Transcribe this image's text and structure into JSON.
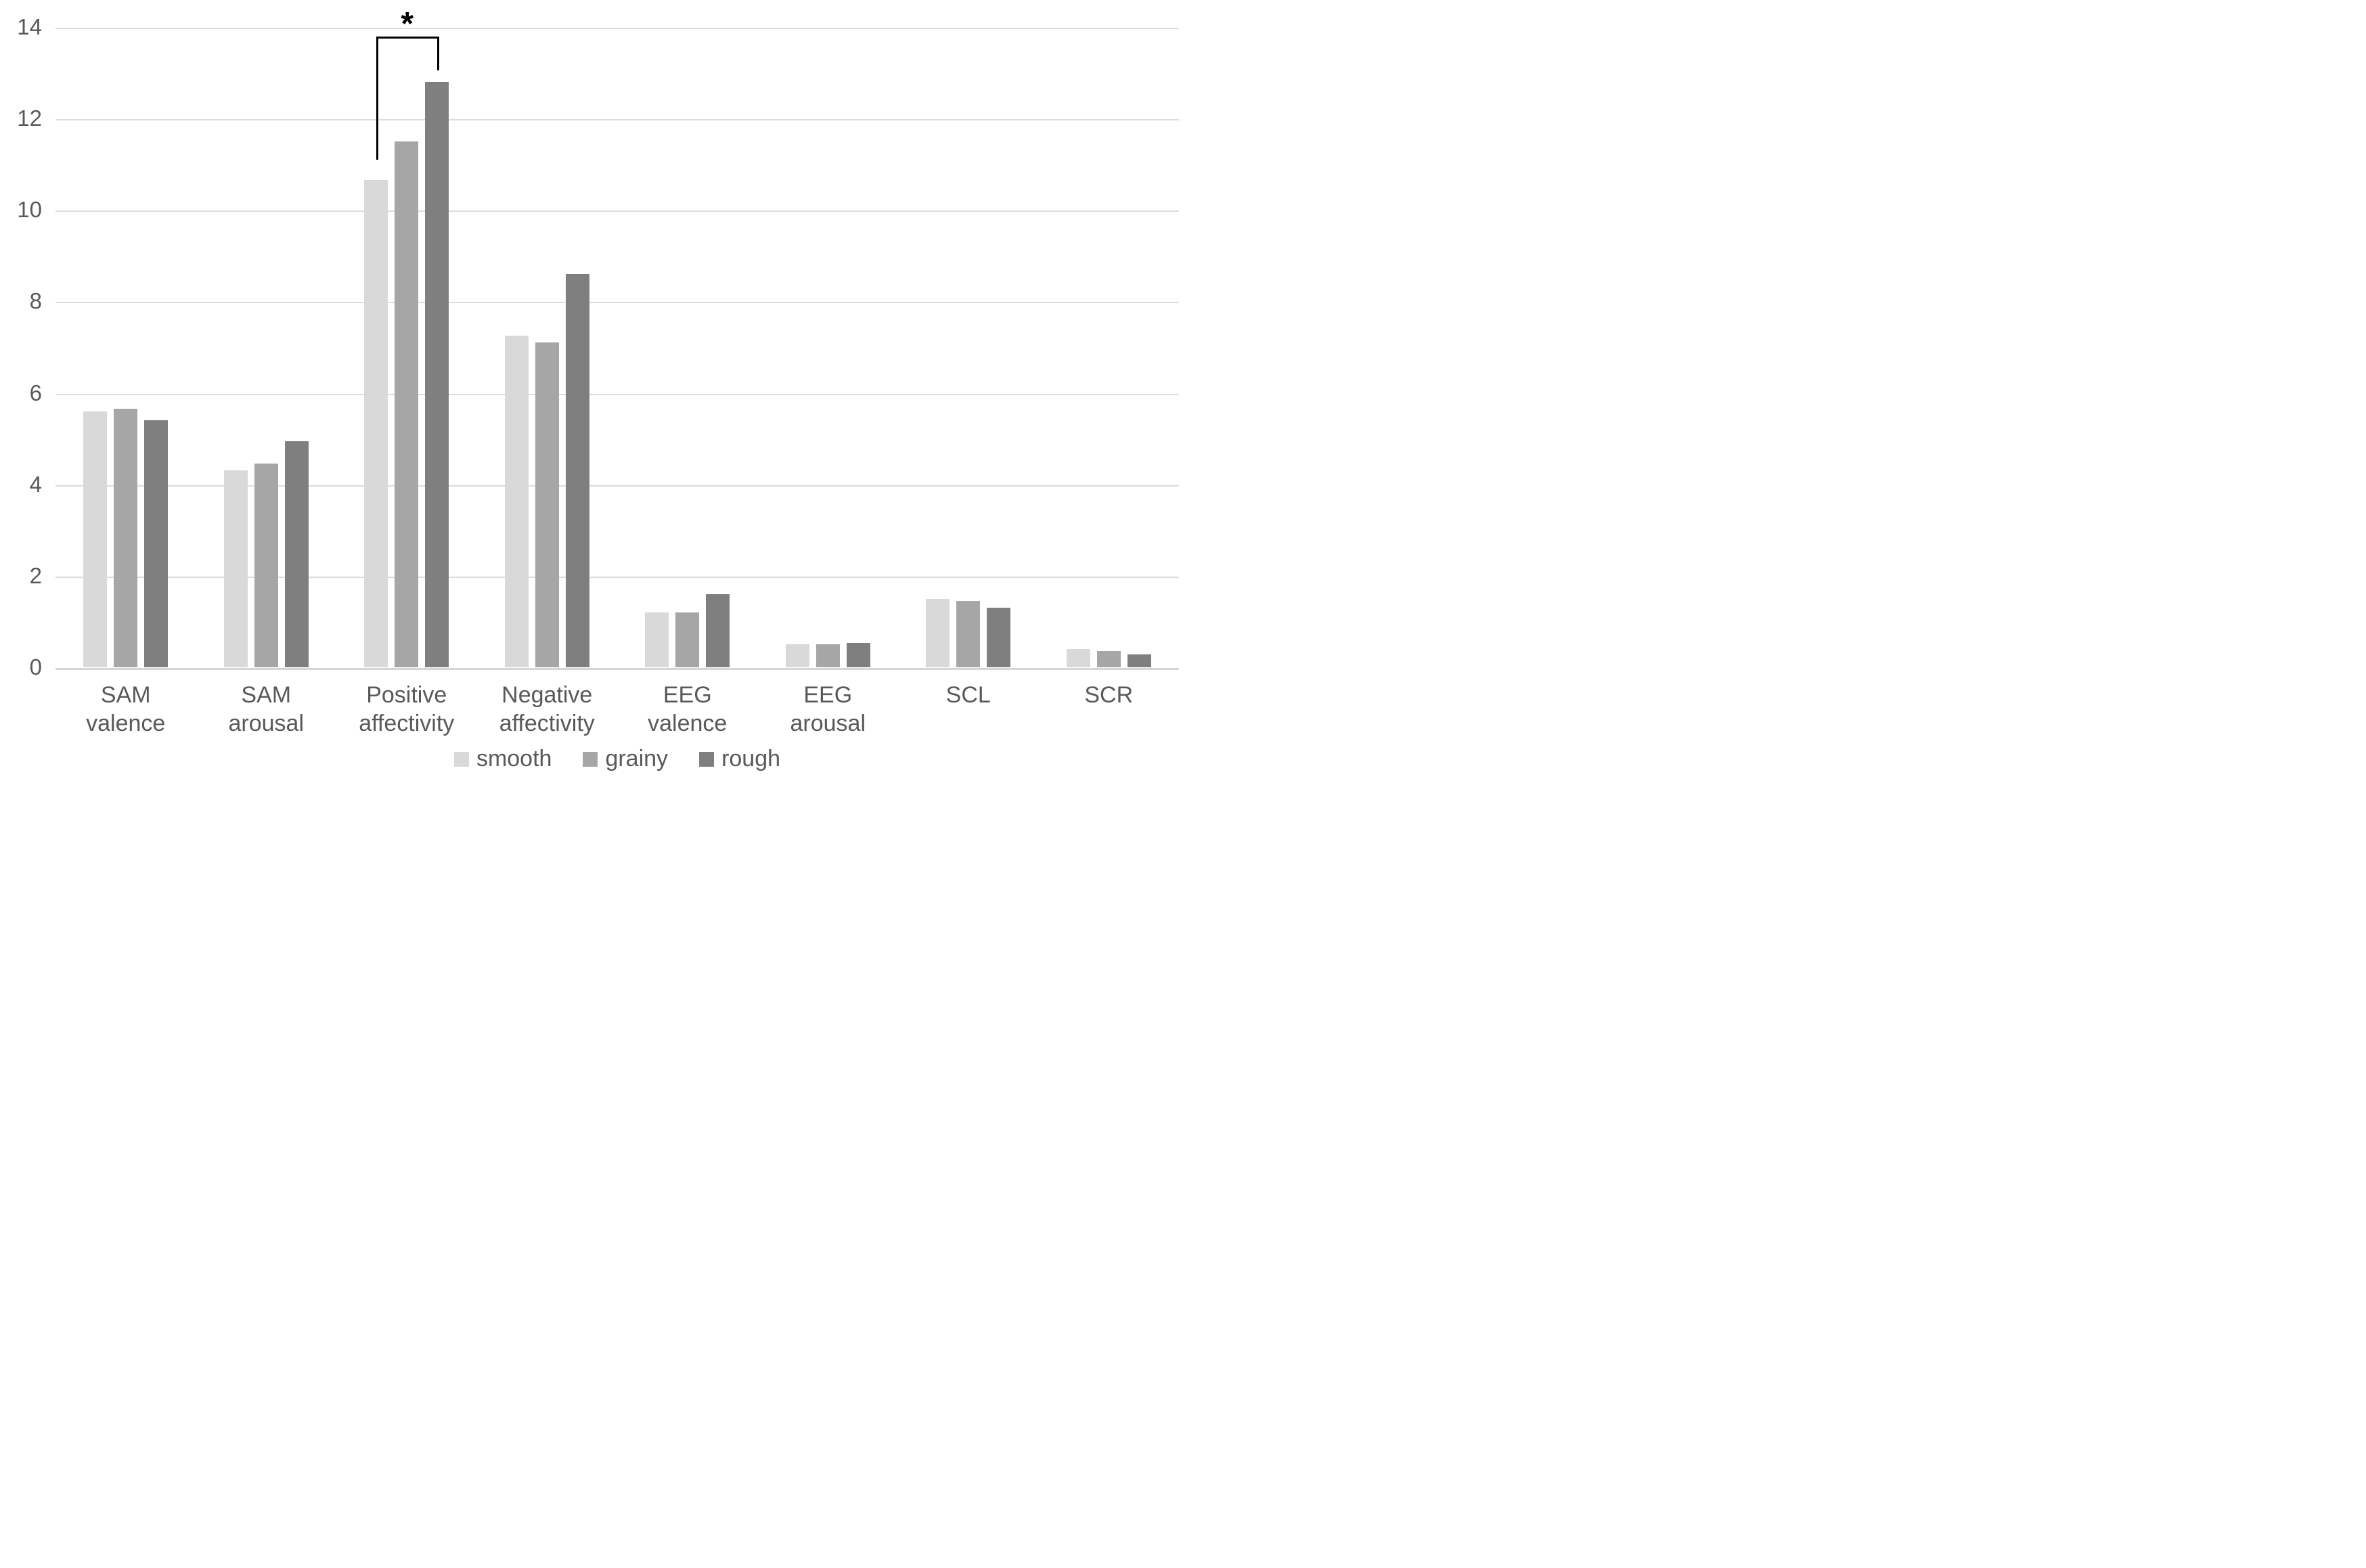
{
  "chart_data": {
    "type": "bar",
    "title": "",
    "categories": [
      "SAM valence",
      "SAM arousal",
      "Positive affectivity",
      "Negative affectivity",
      "EEG valence",
      "EEG arousal",
      "SCL",
      "SCR"
    ],
    "series": [
      {
        "name": "smooth",
        "color": "#d9d9d9",
        "values": [
          5.6,
          4.3,
          10.65,
          7.25,
          1.2,
          0.5,
          1.5,
          0.4
        ]
      },
      {
        "name": "grainy",
        "color": "#a6a6a6",
        "values": [
          5.65,
          4.45,
          11.5,
          7.1,
          1.2,
          0.5,
          1.45,
          0.35
        ]
      },
      {
        "name": "rough",
        "color": "#7f7f7f",
        "values": [
          5.4,
          4.95,
          12.8,
          8.6,
          1.6,
          0.53,
          1.3,
          0.28
        ]
      }
    ],
    "ylim": [
      0,
      14
    ],
    "ytick_step": 2,
    "ytick_labels": [
      "0",
      "2",
      "4",
      "6",
      "8",
      "10",
      "12",
      "14"
    ],
    "xlabel": "",
    "ylabel": "",
    "grid": true,
    "legend_position": "bottom",
    "annotation": {
      "type": "significance-bracket",
      "symbol": "*",
      "category": "Positive affectivity",
      "category_index": 2,
      "from_series": "smooth",
      "from_series_index": 0,
      "to_series": "rough",
      "to_series_index": 2,
      "top_value": 13.8,
      "left_arm_bottom_value": 11.1,
      "right_arm_bottom_value": 13.05
    },
    "colors": {
      "grid_line": "#dcdcdc",
      "axis_line": "#d6d6d6",
      "tick_text": "#595959",
      "annotation": "#000000",
      "background": "#ffffff"
    }
  }
}
